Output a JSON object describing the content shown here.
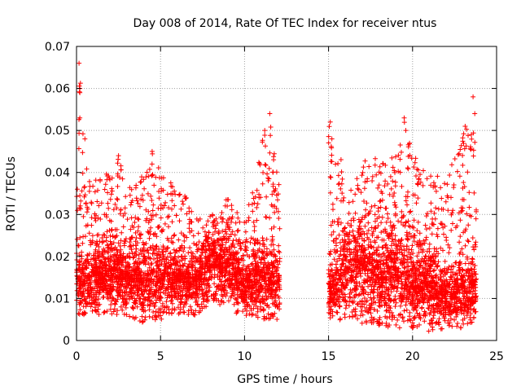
{
  "chart_data": {
    "type": "scatter",
    "title": "Day 008 of 2014, Rate Of TEC Index for receiver ntus",
    "xlabel": "GPS time / hours",
    "ylabel": "ROTI / TECUs",
    "xlim": [
      0,
      25
    ],
    "ylim": [
      0,
      0.07
    ],
    "x_ticks": [
      0,
      5,
      10,
      15,
      20,
      25
    ],
    "x_tick_labels": [
      "0",
      "5",
      "10",
      "15",
      "20",
      "25"
    ],
    "y_ticks": [
      0,
      0.01,
      0.02,
      0.03,
      0.04,
      0.05,
      0.06,
      0.07
    ],
    "y_tick_labels": [
      "0",
      "0.01",
      "0.02",
      "0.03",
      "0.04",
      "0.05",
      "0.06",
      "0.07"
    ],
    "grid": true,
    "marker": "+",
    "marker_color": "#ff0000",
    "segments": [
      {
        "x_start": 0.0,
        "x_end": 12.1
      },
      {
        "x_start": 15.0,
        "x_end": 23.8
      }
    ],
    "envelope_upper": [
      [
        0.0,
        0.034
      ],
      [
        0.2,
        0.066
      ],
      [
        0.5,
        0.045
      ],
      [
        1.0,
        0.038
      ],
      [
        1.5,
        0.041
      ],
      [
        2.0,
        0.039
      ],
      [
        2.5,
        0.044
      ],
      [
        3.0,
        0.036
      ],
      [
        3.5,
        0.038
      ],
      [
        4.0,
        0.04
      ],
      [
        4.5,
        0.045
      ],
      [
        5.0,
        0.04
      ],
      [
        5.5,
        0.039
      ],
      [
        6.0,
        0.035
      ],
      [
        6.5,
        0.036
      ],
      [
        7.0,
        0.031
      ],
      [
        7.5,
        0.029
      ],
      [
        8.0,
        0.03
      ],
      [
        8.5,
        0.032
      ],
      [
        9.0,
        0.034
      ],
      [
        9.5,
        0.031
      ],
      [
        10.0,
        0.03
      ],
      [
        10.5,
        0.038
      ],
      [
        11.0,
        0.047
      ],
      [
        11.5,
        0.054
      ],
      [
        12.0,
        0.04
      ],
      [
        15.0,
        0.052
      ],
      [
        15.5,
        0.045
      ],
      [
        16.0,
        0.042
      ],
      [
        16.5,
        0.039
      ],
      [
        17.0,
        0.041
      ],
      [
        17.5,
        0.046
      ],
      [
        18.0,
        0.043
      ],
      [
        18.5,
        0.044
      ],
      [
        19.0,
        0.045
      ],
      [
        19.5,
        0.053
      ],
      [
        20.0,
        0.045
      ],
      [
        20.5,
        0.041
      ],
      [
        21.0,
        0.039
      ],
      [
        21.5,
        0.04
      ],
      [
        22.0,
        0.038
      ],
      [
        22.5,
        0.045
      ],
      [
        23.0,
        0.049
      ],
      [
        23.5,
        0.058
      ],
      [
        23.8,
        0.05
      ]
    ],
    "baseline_median": [
      [
        0.0,
        0.013
      ],
      [
        1.0,
        0.014
      ],
      [
        2.0,
        0.015
      ],
      [
        3.0,
        0.014
      ],
      [
        4.0,
        0.014
      ],
      [
        5.0,
        0.014
      ],
      [
        6.0,
        0.014
      ],
      [
        7.0,
        0.013
      ],
      [
        8.0,
        0.018
      ],
      [
        9.0,
        0.017
      ],
      [
        10.0,
        0.012
      ],
      [
        11.0,
        0.014
      ],
      [
        12.0,
        0.013
      ],
      [
        15.0,
        0.011
      ],
      [
        16.0,
        0.016
      ],
      [
        17.0,
        0.017
      ],
      [
        18.0,
        0.014
      ],
      [
        19.0,
        0.015
      ],
      [
        20.0,
        0.012
      ],
      [
        21.0,
        0.013
      ],
      [
        22.0,
        0.01
      ],
      [
        23.0,
        0.011
      ],
      [
        23.8,
        0.012
      ]
    ],
    "envelope_lower": [
      [
        0.0,
        0.006
      ],
      [
        3.0,
        0.006
      ],
      [
        4.0,
        0.004
      ],
      [
        6.0,
        0.006
      ],
      [
        7.5,
        0.006
      ],
      [
        8.0,
        0.01
      ],
      [
        9.0,
        0.007
      ],
      [
        10.0,
        0.006
      ],
      [
        11.0,
        0.004
      ],
      [
        12.0,
        0.005
      ],
      [
        15.0,
        0.005
      ],
      [
        17.0,
        0.004
      ],
      [
        19.0,
        0.003
      ],
      [
        21.0,
        0.002
      ],
      [
        22.0,
        0.003
      ],
      [
        23.0,
        0.003
      ],
      [
        23.8,
        0.005
      ]
    ],
    "notable_points": [
      {
        "x": 0.15,
        "y": 0.066
      },
      {
        "x": 0.2,
        "y": 0.06
      },
      {
        "x": 0.2,
        "y": 0.059
      },
      {
        "x": 0.2,
        "y": 0.053
      },
      {
        "x": 0.5,
        "y": 0.048
      },
      {
        "x": 2.5,
        "y": 0.044
      },
      {
        "x": 4.5,
        "y": 0.045
      },
      {
        "x": 11.5,
        "y": 0.054
      },
      {
        "x": 11.2,
        "y": 0.05
      },
      {
        "x": 15.1,
        "y": 0.052
      },
      {
        "x": 15.2,
        "y": 0.048
      },
      {
        "x": 19.5,
        "y": 0.053
      },
      {
        "x": 19.6,
        "y": 0.05
      },
      {
        "x": 23.6,
        "y": 0.058
      },
      {
        "x": 23.7,
        "y": 0.054
      },
      {
        "x": 23.5,
        "y": 0.049
      }
    ]
  }
}
